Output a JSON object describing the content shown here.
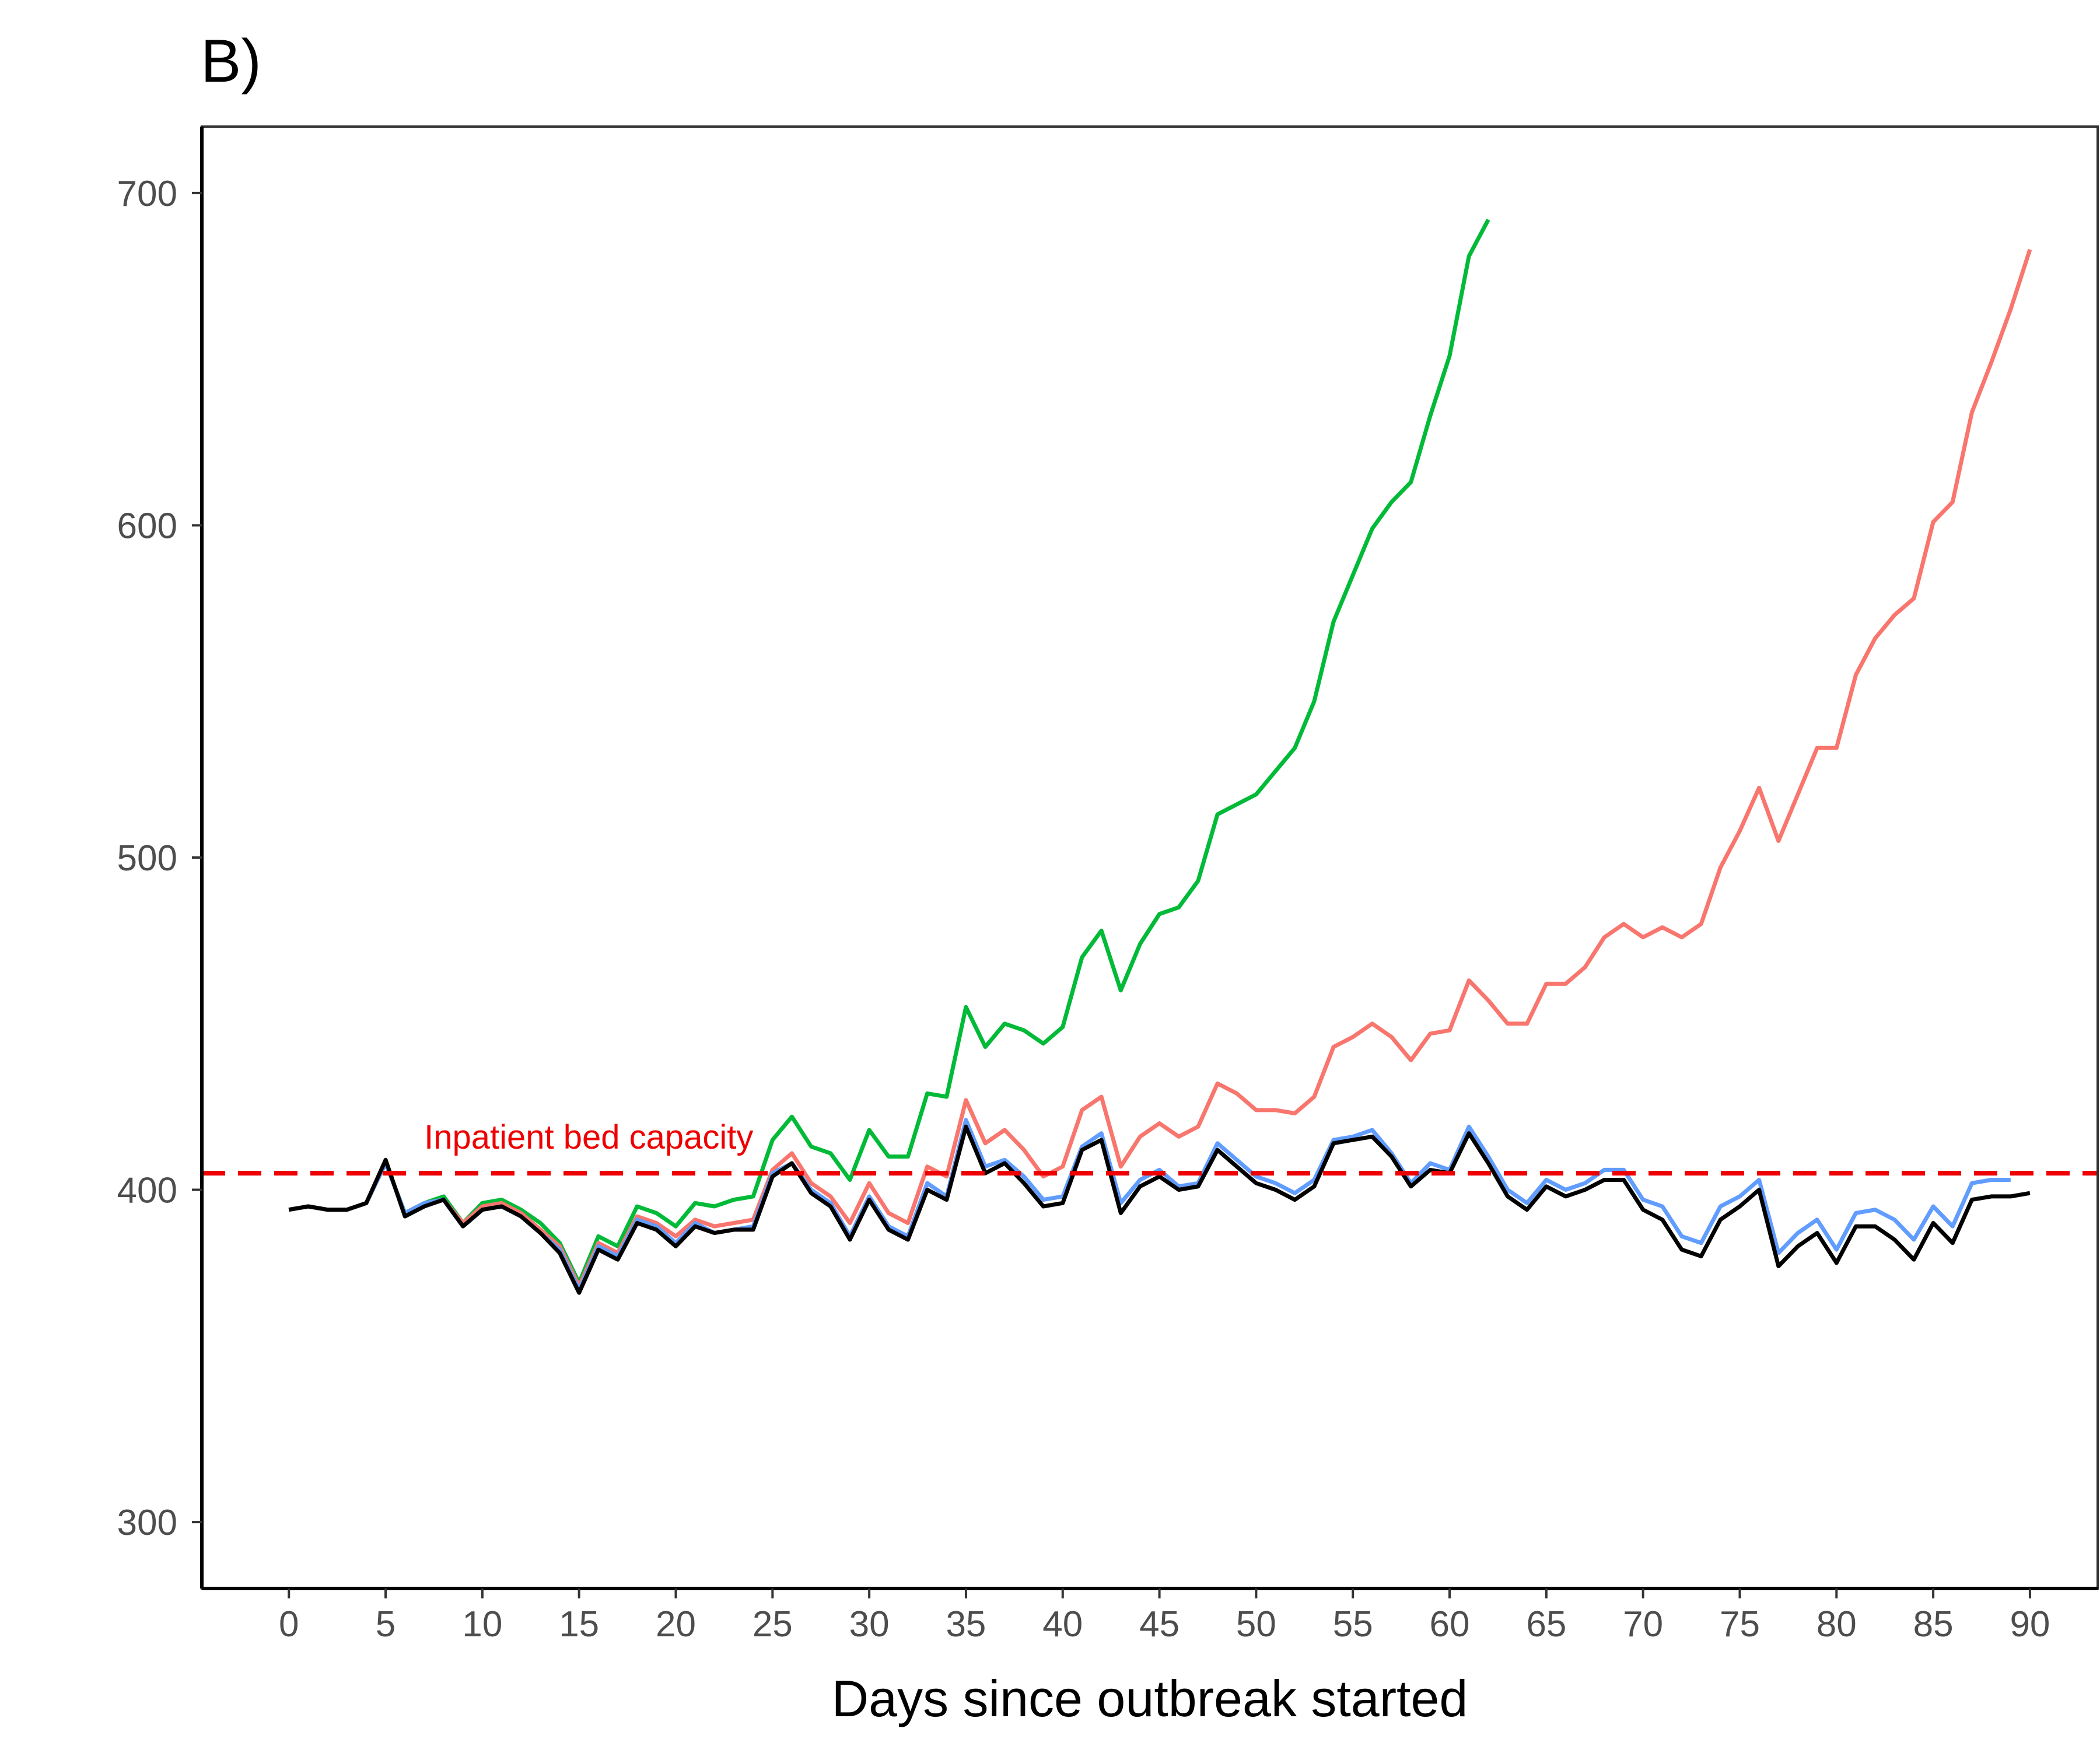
{
  "chart_data": {
    "type": "line",
    "title": "B)",
    "xlabel": "Days since outbreak started",
    "ylabel": "",
    "xlim": [
      -4.5,
      93.5
    ],
    "ylim": [
      280,
      720
    ],
    "x_ticks": [
      0,
      5,
      10,
      15,
      20,
      25,
      30,
      35,
      40,
      45,
      50,
      55,
      60,
      65,
      70,
      75,
      80,
      85,
      90
    ],
    "x_tick_labels": [
      "0",
      "5",
      "10",
      "15",
      "20",
      "25",
      "30",
      "35",
      "40",
      "45",
      "50",
      "55",
      "60",
      "65",
      "70",
      "75",
      "80",
      "85",
      "90"
    ],
    "y_ticks": [
      300,
      400,
      500,
      600,
      700
    ],
    "y_tick_labels": [
      "300",
      "400",
      "500",
      "600",
      "700"
    ],
    "grid": false,
    "legend": "none",
    "reference_line": {
      "y": 405,
      "label": "Inpatient bed capacity",
      "label_x": 15.5,
      "color": "#ee0000",
      "style": "dashed"
    },
    "series": [
      {
        "color": "#00ba38",
        "x": [
          0,
          1,
          2,
          3,
          4,
          5,
          6,
          7,
          8,
          9,
          10,
          11,
          12,
          13,
          14,
          15,
          16,
          17,
          18,
          19,
          20,
          21,
          22,
          23,
          24,
          25,
          26,
          27,
          28,
          29,
          30,
          31,
          32,
          33,
          34,
          35,
          36,
          37,
          38,
          39,
          40,
          41,
          42,
          43,
          44,
          45,
          46,
          47,
          48,
          49,
          50,
          51,
          52,
          53,
          54,
          55,
          56,
          57,
          58,
          59,
          60,
          61,
          62
        ],
        "values": [
          394,
          395,
          394,
          394,
          396,
          408,
          393,
          396,
          398,
          390,
          396,
          397,
          394,
          390,
          384,
          372,
          386,
          383,
          395,
          393,
          389,
          396,
          395,
          397,
          398,
          415,
          422,
          413,
          411,
          403,
          418,
          410,
          410,
          429,
          428,
          455,
          443,
          450,
          448,
          444,
          449,
          470,
          478,
          460,
          474,
          483,
          485,
          493,
          513,
          516,
          519,
          526,
          533,
          547,
          571,
          585,
          599,
          607,
          613,
          633,
          651,
          681,
          692
        ]
      },
      {
        "color": "#f8766d",
        "x": [
          0,
          1,
          2,
          3,
          4,
          5,
          6,
          7,
          8,
          9,
          10,
          11,
          12,
          13,
          14,
          15,
          16,
          17,
          18,
          19,
          20,
          21,
          22,
          23,
          24,
          25,
          26,
          27,
          28,
          29,
          30,
          31,
          32,
          33,
          34,
          35,
          36,
          37,
          38,
          39,
          40,
          41,
          42,
          43,
          44,
          45,
          46,
          47,
          48,
          49,
          50,
          51,
          52,
          53,
          54,
          55,
          56,
          57,
          58,
          59,
          60,
          61,
          62,
          63,
          64,
          65,
          66,
          67,
          68,
          69,
          70,
          71,
          72,
          73,
          74,
          75,
          76,
          77,
          78,
          79,
          80,
          81,
          82,
          83,
          84,
          85,
          86,
          87,
          88,
          89,
          90
        ],
        "values": [
          394,
          395,
          394,
          394,
          396,
          408,
          393,
          396,
          397,
          390,
          395,
          396,
          393,
          388,
          383,
          371,
          384,
          381,
          392,
          390,
          386,
          391,
          389,
          390,
          391,
          406,
          411,
          402,
          398,
          390,
          402,
          393,
          390,
          407,
          404,
          427,
          414,
          418,
          412,
          404,
          407,
          424,
          428,
          407,
          416,
          420,
          416,
          419,
          432,
          429,
          424,
          424,
          423,
          428,
          443,
          446,
          450,
          446,
          439,
          447,
          448,
          463,
          457,
          450,
          450,
          462,
          462,
          467,
          476,
          480,
          476,
          479,
          476,
          480,
          497,
          508,
          521,
          505,
          519,
          533,
          533,
          555,
          566,
          573,
          578,
          601,
          607,
          634,
          649,
          665,
          683
        ]
      },
      {
        "color": "#619cff",
        "x": [
          0,
          1,
          2,
          3,
          4,
          5,
          6,
          7,
          8,
          9,
          10,
          11,
          12,
          13,
          14,
          15,
          16,
          17,
          18,
          19,
          20,
          21,
          22,
          23,
          24,
          25,
          26,
          27,
          28,
          29,
          30,
          31,
          32,
          33,
          34,
          35,
          36,
          37,
          38,
          39,
          40,
          41,
          42,
          43,
          44,
          45,
          46,
          47,
          48,
          49,
          50,
          51,
          52,
          53,
          54,
          55,
          56,
          57,
          58,
          59,
          60,
          61,
          62,
          63,
          64,
          65,
          66,
          67,
          68,
          69,
          70,
          71,
          72,
          73,
          74,
          75,
          76,
          77,
          78,
          79,
          80,
          81,
          82,
          83,
          84,
          85,
          86,
          87,
          88,
          89
        ],
        "values": [
          394,
          395,
          394,
          394,
          396,
          408,
          393,
          396,
          397,
          389,
          394,
          395,
          392,
          387,
          382,
          370,
          383,
          380,
          391,
          389,
          384,
          390,
          387,
          388,
          389,
          405,
          408,
          400,
          396,
          386,
          398,
          389,
          386,
          402,
          398,
          421,
          407,
          409,
          404,
          397,
          398,
          413,
          417,
          396,
          403,
          406,
          401,
          402,
          414,
          409,
          404,
          402,
          399,
          403,
          415,
          416,
          418,
          411,
          402,
          408,
          406,
          419,
          410,
          400,
          396,
          403,
          400,
          402,
          406,
          406,
          397,
          395,
          386,
          384,
          395,
          398,
          403,
          381,
          387,
          391,
          382,
          393,
          394,
          391,
          385,
          395,
          389,
          402,
          403,
          403
        ]
      },
      {
        "color": "#000000",
        "x": [
          0,
          1,
          2,
          3,
          4,
          5,
          6,
          7,
          8,
          9,
          10,
          11,
          12,
          13,
          14,
          15,
          16,
          17,
          18,
          19,
          20,
          21,
          22,
          23,
          24,
          25,
          26,
          27,
          28,
          29,
          30,
          31,
          32,
          33,
          34,
          35,
          36,
          37,
          38,
          39,
          40,
          41,
          42,
          43,
          44,
          45,
          46,
          47,
          48,
          49,
          50,
          51,
          52,
          53,
          54,
          55,
          56,
          57,
          58,
          59,
          60,
          61,
          62,
          63,
          64,
          65,
          66,
          67,
          68,
          69,
          70,
          71,
          72,
          73,
          74,
          75,
          76,
          77,
          78,
          79,
          80,
          81,
          82,
          83,
          84,
          85,
          86,
          87,
          88,
          89,
          90
        ],
        "values": [
          394,
          395,
          394,
          394,
          396,
          409,
          392,
          395,
          397,
          389,
          394,
          395,
          392,
          387,
          381,
          369,
          382,
          379,
          390,
          388,
          383,
          389,
          387,
          388,
          388,
          404,
          408,
          399,
          395,
          385,
          397,
          388,
          385,
          400,
          397,
          419,
          405,
          408,
          402,
          395,
          396,
          412,
          415,
          393,
          401,
          404,
          400,
          401,
          412,
          407,
          402,
          400,
          397,
          401,
          414,
          415,
          416,
          410,
          401,
          406,
          405,
          417,
          408,
          398,
          394,
          401,
          398,
          400,
          403,
          403,
          394,
          391,
          382,
          380,
          391,
          395,
          400,
          377,
          383,
          387,
          378,
          389,
          389,
          385,
          379,
          390,
          384,
          397,
          398,
          398,
          399
        ]
      }
    ]
  }
}
